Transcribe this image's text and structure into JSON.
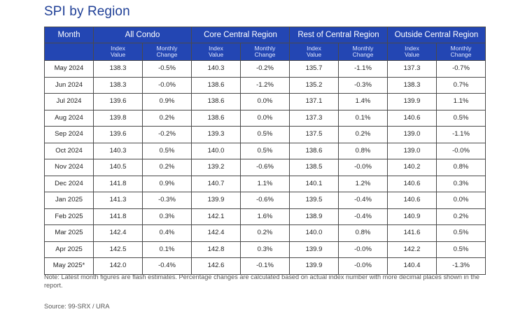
{
  "title": "SPI by Region",
  "table": {
    "month_header": "Month",
    "groups": [
      "All Condo",
      "Core Central Region",
      "Rest of Central Region",
      "Outside Central Region"
    ],
    "sub_headers": {
      "index_line1": "Index",
      "index_line2": "Value",
      "change_line1": "Monthly",
      "change_line2": "Change"
    },
    "rows": [
      {
        "month": "May 2024",
        "cells": [
          "138.3",
          "-0.5%",
          "140.3",
          "-0.2%",
          "135.7",
          "-1.1%",
          "137.3",
          "-0.7%"
        ]
      },
      {
        "month": "Jun 2024",
        "cells": [
          "138.3",
          "-0.0%",
          "138.6",
          "-1.2%",
          "135.2",
          "-0.3%",
          "138.3",
          "0.7%"
        ]
      },
      {
        "month": "Jul 2024",
        "cells": [
          "139.6",
          "0.9%",
          "138.6",
          "0.0%",
          "137.1",
          "1.4%",
          "139.9",
          "1.1%"
        ]
      },
      {
        "month": "Aug 2024",
        "cells": [
          "139.8",
          "0.2%",
          "138.6",
          "0.0%",
          "137.3",
          "0.1%",
          "140.6",
          "0.5%"
        ]
      },
      {
        "month": "Sep 2024",
        "cells": [
          "139.6",
          "-0.2%",
          "139.3",
          "0.5%",
          "137.5",
          "0.2%",
          "139.0",
          "-1.1%"
        ]
      },
      {
        "month": "Oct 2024",
        "cells": [
          "140.3",
          "0.5%",
          "140.0",
          "0.5%",
          "138.6",
          "0.8%",
          "139.0",
          "-0.0%"
        ]
      },
      {
        "month": "Nov 2024",
        "cells": [
          "140.5",
          "0.2%",
          "139.2",
          "-0.6%",
          "138.5",
          "-0.0%",
          "140.2",
          "0.8%"
        ]
      },
      {
        "month": "Dec 2024",
        "cells": [
          "141.8",
          "0.9%",
          "140.7",
          "1.1%",
          "140.1",
          "1.2%",
          "140.6",
          "0.3%"
        ]
      },
      {
        "month": "Jan 2025",
        "cells": [
          "141.3",
          "-0.3%",
          "139.9",
          "-0.6%",
          "139.5",
          "-0.4%",
          "140.6",
          "0.0%"
        ]
      },
      {
        "month": "Feb 2025",
        "cells": [
          "141.8",
          "0.3%",
          "142.1",
          "1.6%",
          "138.9",
          "-0.4%",
          "140.9",
          "0.2%"
        ]
      },
      {
        "month": "Mar 2025",
        "cells": [
          "142.4",
          "0.4%",
          "142.4",
          "0.2%",
          "140.0",
          "0.8%",
          "141.6",
          "0.5%"
        ]
      },
      {
        "month": "Apr 2025",
        "cells": [
          "142.5",
          "0.1%",
          "142.8",
          "0.3%",
          "139.9",
          "-0.0%",
          "142.2",
          "0.5%"
        ]
      },
      {
        "month": "May 2025*",
        "cells": [
          "142.0",
          "-0.4%",
          "142.6",
          "-0.1%",
          "139.9",
          "-0.0%",
          "140.4",
          "-1.3%"
        ]
      }
    ]
  },
  "note": "Note: Latest month figures are flash estimates. Percentage changes are calculated based on actual index number with more decimal places shown in the report.",
  "source": "Source: 99-SRX / URA",
  "colors": {
    "header_background": "#2346b3",
    "title_color": "#1f3f96"
  }
}
